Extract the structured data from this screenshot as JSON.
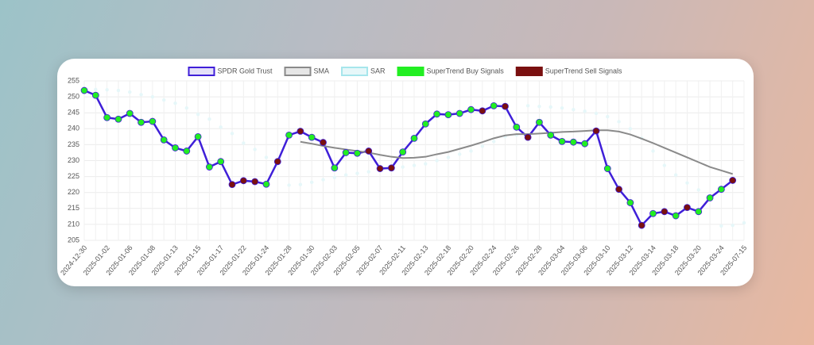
{
  "chart_data": {
    "type": "line",
    "categories": [
      "2024-12-30",
      null,
      "2025-01-02",
      null,
      "2025-01-06",
      null,
      "2025-01-08",
      null,
      "2025-01-13",
      null,
      "2025-01-15",
      null,
      "2025-01-17",
      null,
      "2025-01-22",
      null,
      "2025-01-24",
      null,
      "2025-01-28",
      null,
      "2025-01-30",
      null,
      "2025-02-03",
      null,
      "2025-02-05",
      null,
      "2025-02-07",
      null,
      "2025-02-11",
      null,
      "2025-02-13",
      null,
      "2025-02-18",
      null,
      "2025-02-20",
      null,
      "2025-02-24",
      null,
      "2025-02-26",
      null,
      "2025-02-28",
      null,
      "2025-03-04",
      null,
      "2025-03-06",
      null,
      "2025-03-10",
      null,
      "2025-03-12",
      null,
      "2025-03-14",
      null,
      "2025-03-18",
      null,
      "2025-03-20",
      null,
      "2025-03-24",
      null,
      "2025-07-15"
    ],
    "series": [
      {
        "name": "SPDR Gold Trust",
        "color": "#3f1fd8",
        "fill": "#e4e0f8",
        "style": "line",
        "values": [
          252,
          250.5,
          243.5,
          243,
          244.8,
          242,
          242.3,
          236.5,
          234,
          233,
          237.5,
          228,
          229.7,
          222.5,
          223.7,
          223.4,
          222.6,
          229.7,
          238,
          239.2,
          237.3,
          235.7,
          227.7,
          232.5,
          232.3,
          233,
          227.5,
          227.7,
          232.7,
          237,
          241.5,
          244.6,
          244.4,
          244.8,
          246,
          245.6,
          247.2,
          247,
          240.5,
          237.3,
          242,
          238,
          236,
          235.8,
          235.3,
          239.3,
          227.5,
          221,
          216.8,
          209.7,
          213.4,
          214,
          212.7,
          215.3,
          214,
          218.3,
          221,
          223.8,
          null
        ]
      },
      {
        "name": "SMA",
        "color": "#8a8a8a",
        "fill": "#e6e6e6",
        "style": "line",
        "values": [
          null,
          null,
          null,
          null,
          null,
          null,
          null,
          null,
          null,
          null,
          null,
          null,
          null,
          null,
          null,
          null,
          null,
          null,
          null,
          235.9,
          235.3,
          234.6,
          234,
          233.5,
          233,
          232.5,
          231.8,
          231.2,
          230.8,
          230.9,
          231.2,
          232,
          232.7,
          233.7,
          234.7,
          235.8,
          237,
          237.9,
          238.3,
          238.3,
          238.5,
          238.7,
          239,
          239.1,
          239.3,
          239.5,
          239.5,
          239.1,
          238.2,
          236.9,
          235.5,
          234,
          232.5,
          231,
          229.5,
          228,
          226.9,
          225.8,
          null
        ]
      },
      {
        "name": "SAR",
        "color": "#a6e6ec",
        "fill": "#e6f7f9",
        "style": "dots",
        "values": [
          null,
          252.3,
          252.2,
          252,
          251.5,
          250.7,
          250,
          249,
          248,
          246.5,
          244.5,
          243,
          240.5,
          238.5,
          235.5,
          233.5,
          231,
          229,
          222.3,
          222.5,
          223.2,
          224,
          224.7,
          225.5,
          226,
          226.5,
          227,
          227.5,
          228,
          228.5,
          229,
          230,
          231,
          232,
          233,
          234.5,
          236,
          237.5,
          238,
          247.2,
          247,
          246.8,
          246.5,
          246,
          245.5,
          244.8,
          243.8,
          242.2,
          240,
          237,
          233,
          228.5,
          225.5,
          223,
          220.8,
          219,
          209.5,
          209.7,
          210.5
        ]
      },
      {
        "name": "SuperTrend Buy Signals",
        "color": "#22ee22",
        "fill": "#22ee22",
        "style": "points",
        "values": [
          252,
          250.5,
          243.5,
          243,
          244.8,
          242,
          242.3,
          236.5,
          234,
          233,
          237.5,
          228,
          229.7,
          null,
          null,
          null,
          222.6,
          null,
          238,
          null,
          237.3,
          null,
          227.7,
          232.5,
          232.3,
          null,
          null,
          null,
          232.7,
          237,
          241.5,
          244.6,
          244.4,
          244.8,
          246,
          null,
          247.2,
          null,
          240.5,
          null,
          242,
          238,
          236,
          235.8,
          235.3,
          null,
          227.5,
          null,
          216.8,
          null,
          213.4,
          null,
          212.7,
          null,
          214,
          218.3,
          221,
          null,
          null
        ]
      },
      {
        "name": "SuperTrend Sell Signals",
        "color": "#7a1010",
        "fill": "#7a1010",
        "style": "points",
        "values": [
          null,
          null,
          null,
          null,
          null,
          null,
          null,
          null,
          null,
          null,
          null,
          null,
          null,
          222.5,
          223.7,
          223.4,
          null,
          229.7,
          null,
          239.2,
          null,
          235.7,
          null,
          null,
          null,
          233,
          227.5,
          227.7,
          null,
          null,
          null,
          null,
          null,
          null,
          null,
          245.6,
          null,
          247,
          null,
          237.3,
          null,
          null,
          null,
          null,
          null,
          239.3,
          null,
          221,
          null,
          209.7,
          null,
          214,
          null,
          215.3,
          null,
          null,
          null,
          223.8,
          null
        ]
      }
    ],
    "ylim": [
      205,
      255
    ],
    "yticks": [
      205,
      210,
      215,
      220,
      225,
      230,
      235,
      240,
      245,
      250,
      255
    ],
    "grid": true,
    "legend": "top"
  }
}
